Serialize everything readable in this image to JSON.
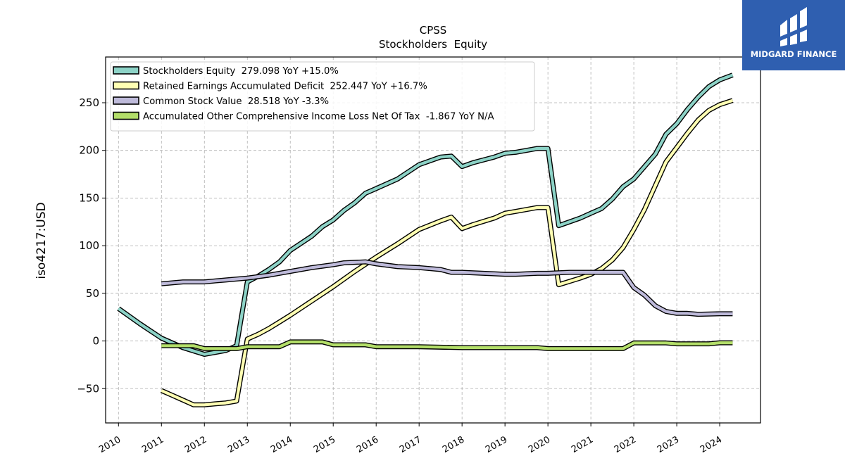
{
  "chart_data": {
    "type": "line",
    "title": "CPSS",
    "subtitle": "Stockholders  Equity",
    "ylabel": "iso4217:USD",
    "xlabel": "",
    "xlim": [
      2009.7,
      2024.95
    ],
    "ylim": [
      -86,
      298
    ],
    "yticks": [
      -50,
      0,
      50,
      100,
      150,
      200,
      250
    ],
    "yticklabels": [
      "−50",
      "0",
      "50",
      "100",
      "150",
      "200",
      "250"
    ],
    "xticks": [
      2010,
      2011,
      2012,
      2013,
      2014,
      2015,
      2016,
      2017,
      2018,
      2019,
      2020,
      2021,
      2022,
      2023,
      2024
    ],
    "grid": true,
    "legend_position": "top-left",
    "series": [
      {
        "name": "Stockholders Equity  279.098 YoY +15.0%",
        "color": "#8dd3c7",
        "points": [
          [
            2010.0,
            34
          ],
          [
            2010.5,
            18
          ],
          [
            2011.0,
            3
          ],
          [
            2011.5,
            -7
          ],
          [
            2012.0,
            -14
          ],
          [
            2012.5,
            -10
          ],
          [
            2012.75,
            -5
          ],
          [
            2013.0,
            62
          ],
          [
            2013.25,
            68
          ],
          [
            2013.5,
            75
          ],
          [
            2013.75,
            83
          ],
          [
            2014.0,
            95
          ],
          [
            2014.5,
            110
          ],
          [
            2014.75,
            120
          ],
          [
            2015.0,
            127
          ],
          [
            2015.25,
            137
          ],
          [
            2015.5,
            145
          ],
          [
            2015.75,
            155
          ],
          [
            2016.0,
            160
          ],
          [
            2016.5,
            170
          ],
          [
            2017.0,
            185
          ],
          [
            2017.5,
            193
          ],
          [
            2017.75,
            194
          ],
          [
            2018.0,
            183
          ],
          [
            2018.25,
            187
          ],
          [
            2018.75,
            193
          ],
          [
            2019.0,
            197
          ],
          [
            2019.25,
            198
          ],
          [
            2019.75,
            202
          ],
          [
            2020.0,
            202
          ],
          [
            2020.25,
            121
          ],
          [
            2020.75,
            129
          ],
          [
            2021.0,
            134
          ],
          [
            2021.25,
            139
          ],
          [
            2021.5,
            149
          ],
          [
            2021.75,
            162
          ],
          [
            2022.0,
            170
          ],
          [
            2022.5,
            196
          ],
          [
            2022.75,
            217
          ],
          [
            2023.0,
            228
          ],
          [
            2023.25,
            243
          ],
          [
            2023.5,
            256
          ],
          [
            2023.75,
            267
          ],
          [
            2024.0,
            274
          ],
          [
            2024.3,
            279.098
          ]
        ]
      },
      {
        "name": "Retained Earnings Accumulated Deficit  252.447 YoY +16.7%",
        "color": "#ffffb3",
        "points": [
          [
            2011.0,
            -52
          ],
          [
            2011.25,
            -57
          ],
          [
            2011.5,
            -62
          ],
          [
            2011.75,
            -67
          ],
          [
            2012.0,
            -67
          ],
          [
            2012.25,
            -66
          ],
          [
            2012.5,
            -65
          ],
          [
            2012.75,
            -63
          ],
          [
            2013.0,
            2
          ],
          [
            2013.25,
            7
          ],
          [
            2013.5,
            13
          ],
          [
            2013.75,
            20
          ],
          [
            2014.0,
            27
          ],
          [
            2014.5,
            42
          ],
          [
            2015.0,
            57
          ],
          [
            2015.5,
            73
          ],
          [
            2016.0,
            88
          ],
          [
            2016.5,
            102
          ],
          [
            2017.0,
            117
          ],
          [
            2017.5,
            126
          ],
          [
            2017.75,
            130
          ],
          [
            2018.0,
            118
          ],
          [
            2018.25,
            122
          ],
          [
            2018.75,
            129
          ],
          [
            2019.0,
            134
          ],
          [
            2019.25,
            136
          ],
          [
            2019.75,
            140
          ],
          [
            2020.0,
            140
          ],
          [
            2020.25,
            59
          ],
          [
            2020.75,
            66
          ],
          [
            2021.0,
            70
          ],
          [
            2021.25,
            76
          ],
          [
            2021.5,
            85
          ],
          [
            2021.75,
            98
          ],
          [
            2022.0,
            117
          ],
          [
            2022.25,
            138
          ],
          [
            2022.5,
            163
          ],
          [
            2022.75,
            188
          ],
          [
            2023.0,
            203
          ],
          [
            2023.25,
            218
          ],
          [
            2023.5,
            232
          ],
          [
            2023.75,
            242
          ],
          [
            2024.0,
            248
          ],
          [
            2024.3,
            252.447
          ]
        ]
      },
      {
        "name": "Common Stock Value  28.518 YoY -3.3%",
        "color": "#bebada",
        "points": [
          [
            2011.0,
            60
          ],
          [
            2011.5,
            62
          ],
          [
            2012.0,
            62
          ],
          [
            2012.25,
            63
          ],
          [
            2012.5,
            64
          ],
          [
            2013.0,
            66
          ],
          [
            2013.5,
            69
          ],
          [
            2014.0,
            73
          ],
          [
            2014.5,
            77
          ],
          [
            2015.0,
            80
          ],
          [
            2015.25,
            82
          ],
          [
            2015.75,
            83
          ],
          [
            2016.0,
            81
          ],
          [
            2016.5,
            78
          ],
          [
            2017.0,
            77
          ],
          [
            2017.5,
            75
          ],
          [
            2017.75,
            72
          ],
          [
            2018.0,
            72
          ],
          [
            2018.5,
            71
          ],
          [
            2019.0,
            70
          ],
          [
            2019.25,
            70
          ],
          [
            2019.75,
            71
          ],
          [
            2020.0,
            71
          ],
          [
            2020.5,
            72
          ],
          [
            2021.0,
            72
          ],
          [
            2021.5,
            72
          ],
          [
            2021.75,
            72
          ],
          [
            2022.0,
            56
          ],
          [
            2022.25,
            48
          ],
          [
            2022.5,
            37
          ],
          [
            2022.75,
            31
          ],
          [
            2023.0,
            29
          ],
          [
            2023.25,
            29
          ],
          [
            2023.5,
            28
          ],
          [
            2024.0,
            28.5
          ],
          [
            2024.3,
            28.518
          ]
        ]
      },
      {
        "name": "Accumulated Other Comprehensive Income Loss Net Of Tax  -1.867 YoY N/A",
        "color": "#b3de69",
        "points": [
          [
            2011.0,
            -5
          ],
          [
            2011.75,
            -5
          ],
          [
            2012.0,
            -8
          ],
          [
            2012.75,
            -8
          ],
          [
            2013.0,
            -6
          ],
          [
            2013.75,
            -6
          ],
          [
            2014.0,
            -1
          ],
          [
            2014.75,
            -1
          ],
          [
            2015.0,
            -4
          ],
          [
            2015.75,
            -4
          ],
          [
            2016.0,
            -6
          ],
          [
            2017.0,
            -6
          ],
          [
            2018.0,
            -7
          ],
          [
            2019.0,
            -7
          ],
          [
            2019.75,
            -7
          ],
          [
            2020.0,
            -8
          ],
          [
            2021.0,
            -8
          ],
          [
            2021.75,
            -8
          ],
          [
            2022.0,
            -2
          ],
          [
            2022.75,
            -2
          ],
          [
            2023.0,
            -3
          ],
          [
            2023.75,
            -3
          ],
          [
            2024.0,
            -1.867
          ],
          [
            2024.3,
            -1.867
          ]
        ]
      }
    ]
  },
  "logo": {
    "text": "MIDGARD FINANCE",
    "color": "#2f5fb0"
  }
}
